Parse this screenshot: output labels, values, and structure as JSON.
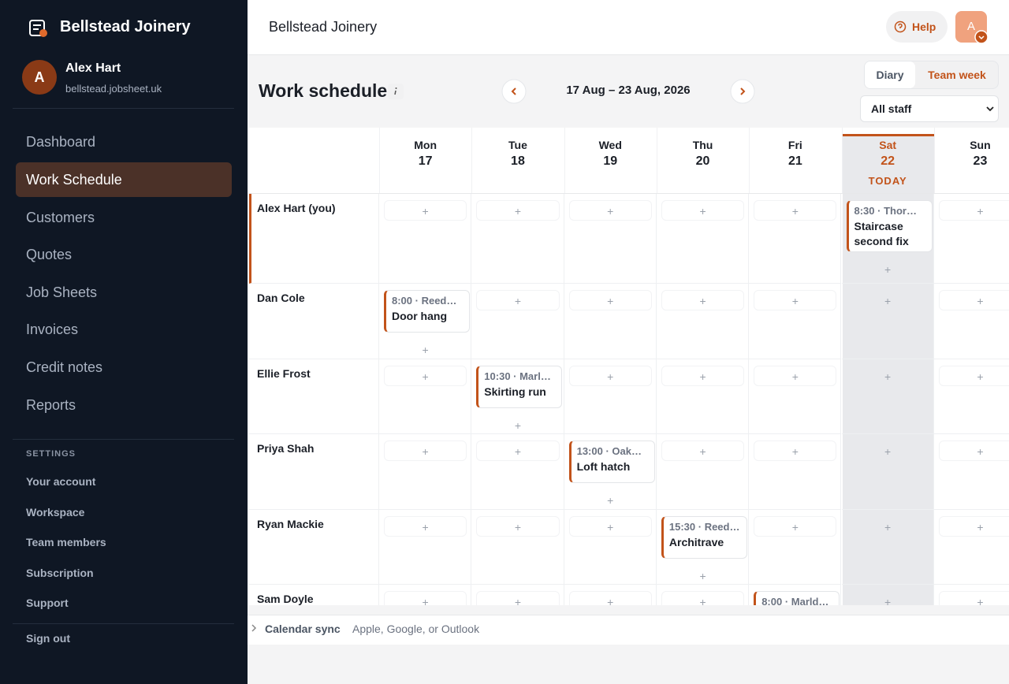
{
  "sidebar": {
    "brand": "Bellstead Joinery",
    "user": {
      "initial": "A",
      "name": "Alex Hart",
      "domain": "bellstead.jobsheet.uk"
    },
    "nav": [
      {
        "label": "Dashboard",
        "active": false
      },
      {
        "label": "Work Schedule",
        "active": true
      },
      {
        "label": "Customers",
        "active": false
      },
      {
        "label": "Quotes",
        "active": false
      },
      {
        "label": "Job Sheets",
        "active": false
      },
      {
        "label": "Invoices",
        "active": false
      },
      {
        "label": "Credit notes",
        "active": false
      },
      {
        "label": "Reports",
        "active": false
      }
    ],
    "settings_heading": "SETTINGS",
    "settings": [
      "Your account",
      "Workspace",
      "Team members",
      "Subscription",
      "Support"
    ],
    "sign_out": "Sign out"
  },
  "header": {
    "title": "Bellstead Joinery",
    "help": "Help",
    "avatar": "A"
  },
  "toolbar": {
    "title": "Work schedule",
    "range": "17 Aug – 23 Aug, 2026",
    "views": [
      {
        "label": "Diary",
        "active": false
      },
      {
        "label": "Team week",
        "active": true
      }
    ],
    "filter": "All staff"
  },
  "schedule": {
    "add_slot": "+",
    "days": [
      {
        "name": "Mon",
        "date": "17"
      },
      {
        "name": "Tue",
        "date": "18"
      },
      {
        "name": "Wed",
        "date": "19"
      },
      {
        "name": "Thu",
        "date": "20"
      },
      {
        "name": "Fri",
        "date": "21"
      },
      {
        "name": "Sat",
        "date": "22",
        "today": "TODAY"
      },
      {
        "name": "Sun",
        "date": "23"
      }
    ],
    "staff": [
      {
        "name": "Alex Hart (you)",
        "current": true,
        "events": [
          {
            "day": 5,
            "time": "8:30 · Thor…",
            "title": "Staircase second fix"
          }
        ]
      },
      {
        "name": "Dan Cole",
        "events": [
          {
            "day": 0,
            "time": "8:00 · Reed…",
            "title": "Door hang"
          }
        ]
      },
      {
        "name": "Ellie Frost",
        "events": [
          {
            "day": 1,
            "time": "10:30 · Marl…",
            "title": "Skirting run"
          }
        ]
      },
      {
        "name": "Priya Shah",
        "events": [
          {
            "day": 2,
            "time": "13:00 · Oak…",
            "title": "Loft hatch"
          }
        ]
      },
      {
        "name": "Ryan Mackie",
        "events": [
          {
            "day": 3,
            "time": "15:30 · Reed…",
            "title": "Architrave"
          }
        ]
      },
      {
        "name": "Sam Doyle",
        "events": [
          {
            "day": 4,
            "time": "8:00 · Marld…"
          }
        ]
      }
    ]
  },
  "footer": {
    "label": "Calendar sync",
    "text": "Apple, Google, or Outlook"
  }
}
